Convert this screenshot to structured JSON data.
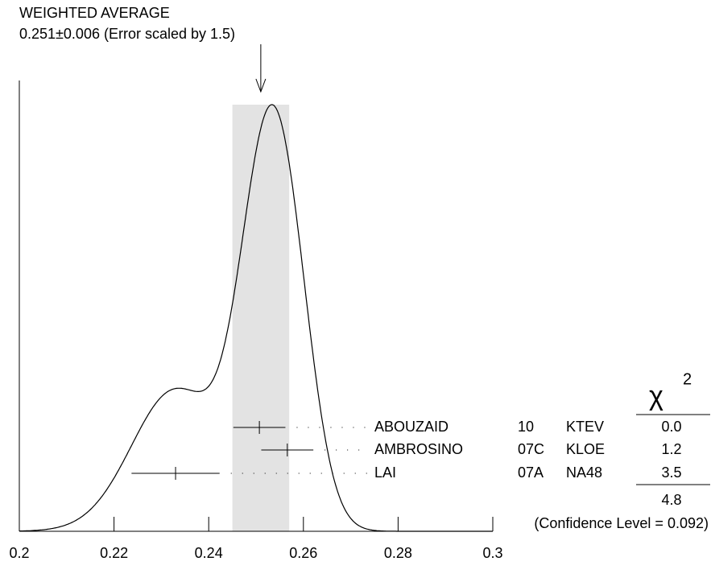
{
  "chart_data": {
    "type": "ideogram",
    "title": "WEIGHTED AVERAGE",
    "subtitle": "0.251±0.006 (Error scaled by 1.5)",
    "average": {
      "value": 0.251,
      "error": 0.006
    },
    "xlim": [
      0.2,
      0.3
    ],
    "xticks": [
      0.2,
      0.22,
      0.24,
      0.26,
      0.28,
      0.3
    ],
    "chi2_symbol": "χ",
    "chi2_power": "2",
    "measurements": [
      {
        "author": "ABOUZAID",
        "year": "10",
        "experiment": "KTEV",
        "value": 0.2507,
        "error": 0.0055,
        "chi2": "0.0"
      },
      {
        "author": "AMBROSINO",
        "year": "07C",
        "experiment": "KLOE",
        "value": 0.2566,
        "error": 0.0055,
        "chi2": "1.2"
      },
      {
        "author": "LAI",
        "year": "07A",
        "experiment": "NA48",
        "value": 0.233,
        "error": 0.0093,
        "chi2": "3.5"
      }
    ],
    "chi2_total": "4.8",
    "confidence_level": "(Confidence Level = 0.092)"
  }
}
